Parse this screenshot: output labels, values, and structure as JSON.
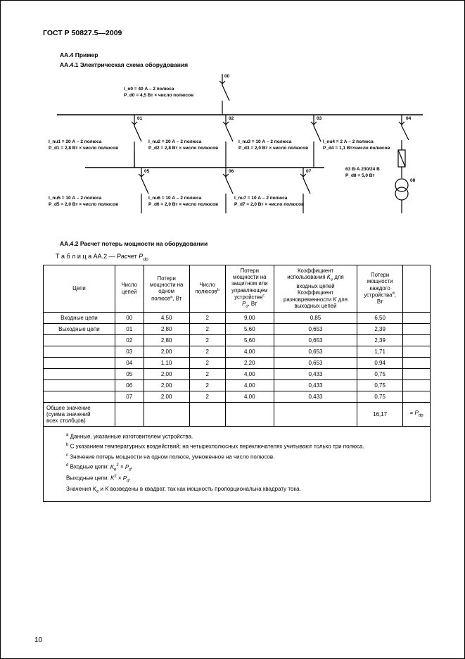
{
  "standard": "ГОСТ Р 50827.5—2009",
  "sec_aa4": "АА.4  Пример",
  "sec_aa41": "АА.4.1  Электрическая схема оборудования",
  "sec_aa42": "АА.4.2  Расчет потерь мощности на оборудовании",
  "table_caption_prefix": "Т а б л и ц а   АА.2 — Расчет ",
  "table_caption_var": "P_dp",
  "page_number": "10",
  "diagram": {
    "top": {
      "id": "00",
      "l1": "I_n0 = 40 А – 2 полюса",
      "l2": "P_d0 = 4,5 Вт × число полюсов"
    },
    "mid": [
      {
        "id": "01",
        "l1": "I_nu1 = 20 А – 2 полюса",
        "l2": "P_d1 = 2,8 Вт × число полюсов"
      },
      {
        "id": "02",
        "l1": "I_nu2 = 20 А – 2 полюса",
        "l2": "P_d2 = 2,8 Вт × число полюсов"
      },
      {
        "id": "03",
        "l1": "I_nu3 = 10 А – 2 полюса",
        "l2": "P_d3 = 2,0 Вт × число полюсов"
      },
      {
        "id": "04",
        "l1": "I_nu4 = 2 А – 2 полюса",
        "l2": "P_d4 = 1,1 Вт×число полюсов"
      }
    ],
    "bot": [
      {
        "id": "05",
        "l1": "I_nu5 = 10 А – 2 полюса",
        "l2": "P_d5 = 2,0 Вт × число полюсов"
      },
      {
        "id": "06",
        "l1": "I_nu6 = 10 А – 2 полюса",
        "l2": "P_d6 = 2,0 Вт × число полюсов"
      },
      {
        "id": "07",
        "l1": "I_nu7 = 10 А – 2 полюса",
        "l2": "P_d7 = 2,0 Вт × число полюсов"
      }
    ],
    "trans": {
      "id": "08",
      "l1": "63 В·А  230/24 В",
      "l2": "P_d8 = 5,0 Вт"
    }
  },
  "table": {
    "headers": [
      "Цепи",
      "Число\nцепей",
      "Потери\nмощности на\nодном\nполюсеᵃ, Вт",
      "Число\nполюсовᵇ",
      "Потери\nмощности на\nзащитном или\nуправляющем\nустройствеᶜ\nP_d, Вт",
      "Коэффициент\nиспользования K_e для\nвходных цепей\nКоэффициент\nразновременности K для\nвыходных цепей",
      "Потери\nмощности\nкаждого\nустройстваᵈ,\nВт",
      ""
    ],
    "rows": [
      [
        "Входные цепи",
        "00",
        "4,50",
        "2",
        "9,00",
        "0,85",
        "6,50",
        ""
      ],
      [
        "Выходные цепи",
        "01",
        "2,80",
        "2",
        "5,60",
        "0,653",
        "2,39",
        ""
      ],
      [
        "",
        "02",
        "2,80",
        "2",
        "5,60",
        "0,653",
        "2,39",
        ""
      ],
      [
        "",
        "03",
        "2,00",
        "2",
        "4,00",
        "0,653",
        "1,71",
        ""
      ],
      [
        "",
        "04",
        "1,10",
        "2",
        "2,20",
        "0,653",
        "0,94",
        ""
      ],
      [
        "",
        "05",
        "2,00",
        "2",
        "4,00",
        "0,433",
        "0,75",
        ""
      ],
      [
        "",
        "06",
        "2,00",
        "2",
        "4,00",
        "0,433",
        "0,75",
        ""
      ],
      [
        "",
        "07",
        "2,00",
        "2",
        "4,00",
        "0,433",
        "0,75",
        ""
      ]
    ],
    "total_label": "Общее значение\n(сумма значений\nвсех столбцов)",
    "total_value": "16,17",
    "total_eq": "= P_dp",
    "col_widths": [
      "100px",
      "40px",
      "64px",
      "50px",
      "68px",
      "116px",
      "64px",
      "38px"
    ]
  },
  "notes": {
    "a": "Данные, указанные изготовителем устройства.",
    "b": "С указанием температурных воздействий; на четырехполюсных переключателях учитывают только три полюса.",
    "c": "Значение потерь мощности на одном полюсе, умноженное на число полюсов.",
    "d_in": "Входные цепи: K_e² × P_d.",
    "d_out": "Выходные цепи: K² × P_d.",
    "last": "Значения K_e и K возведены в квадрат, так как мощность пропорциональна квадрату тока."
  },
  "colors": {
    "line": "#000000",
    "bg": "#ffffff"
  }
}
